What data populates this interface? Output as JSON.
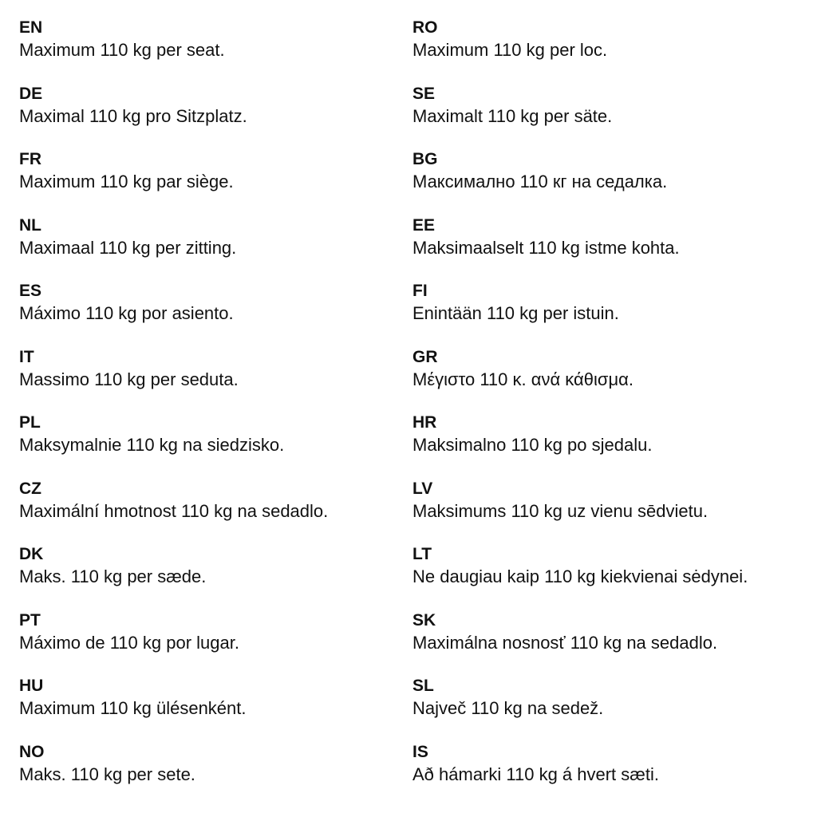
{
  "left_column": [
    {
      "code": "EN",
      "text": "Maximum 110 kg per seat."
    },
    {
      "code": "DE",
      "text": "Maximal 110 kg pro Sitzplatz."
    },
    {
      "code": "FR",
      "text": "Maximum 110 kg par siège."
    },
    {
      "code": "NL",
      "text": "Maximaal 110 kg per zitting."
    },
    {
      "code": "ES",
      "text": "Máximo 110 kg por asiento."
    },
    {
      "code": "IT",
      "text": "Massimo 110 kg per seduta."
    },
    {
      "code": "PL",
      "text": "Maksymalnie 110 kg na siedzisko."
    },
    {
      "code": "CZ",
      "text": "Maximální hmotnost 110 kg na sedadlo."
    },
    {
      "code": "DK",
      "text": "Maks. 110 kg per sæde."
    },
    {
      "code": "PT",
      "text": "Máximo de 110 kg por lugar."
    },
    {
      "code": "HU",
      "text": "Maximum 110 kg ülésenként."
    },
    {
      "code": "NO",
      "text": "Maks. 110 kg per sete."
    }
  ],
  "right_column": [
    {
      "code": "RO",
      "text": "Maximum 110 kg per loc."
    },
    {
      "code": "SE",
      "text": "Maximalt 110 kg per säte."
    },
    {
      "code": "BG",
      "text": "Максимално 110 кг на седалка."
    },
    {
      "code": "EE",
      "text": "Maksimaalselt 110 kg istme kohta."
    },
    {
      "code": "FI",
      "text": "Enintään 110 kg per istuin."
    },
    {
      "code": "GR",
      "text": "Μέγιστο 110 κ. ανά κάθισμα."
    },
    {
      "code": "HR",
      "text": "Maksimalno 110 kg po sjedalu."
    },
    {
      "code": "LV",
      "text": "Maksimums 110 kg uz vienu sēdvietu."
    },
    {
      "code": "LT",
      "text": "Ne daugiau kaip 110 kg kiekvienai sėdynei."
    },
    {
      "code": "SK",
      "text": "Maximálna nosnosť 110 kg na sedadlo."
    },
    {
      "code": "SL",
      "text": "Največ 110 kg na sedež."
    },
    {
      "code": "IS",
      "text": "Að hámarki 110 kg á hvert sæti."
    }
  ]
}
